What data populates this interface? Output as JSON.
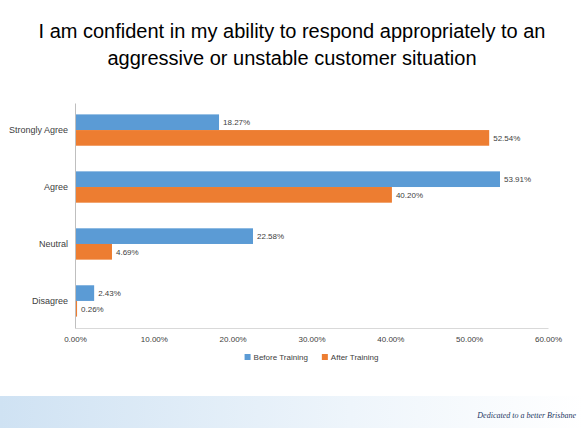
{
  "chart_data": {
    "type": "bar",
    "orientation": "horizontal",
    "title": "I am confident in my ability to respond appropriately to an aggressive or unstable customer situation",
    "categories": [
      "Strongly Agree",
      "Agree",
      "Neutral",
      "Disagree"
    ],
    "series": [
      {
        "name": "Before Training",
        "color": "#5b9bd5",
        "values": [
          18.27,
          53.91,
          22.58,
          2.43
        ],
        "value_labels": [
          "18.27%",
          "53.91%",
          "22.58%",
          "2.43%"
        ]
      },
      {
        "name": "After Training",
        "color": "#ed7d31",
        "values": [
          52.54,
          40.2,
          4.69,
          0.26
        ],
        "value_labels": [
          "52.54%",
          "40.20%",
          "4.69%",
          "0.26%"
        ]
      }
    ],
    "xlim": [
      0,
      60
    ],
    "xticks": [
      {
        "value": 0,
        "label": "0.00%"
      },
      {
        "value": 10,
        "label": "10.00%"
      },
      {
        "value": 20,
        "label": "20.00%"
      },
      {
        "value": 30,
        "label": "30.00%"
      },
      {
        "value": 40,
        "label": "40.00%"
      },
      {
        "value": 50,
        "label": "50.00%"
      },
      {
        "value": 60,
        "label": "60.00%"
      }
    ],
    "grid": false,
    "data_labels": true,
    "legend": "bottom",
    "annotations": [
      "Dedicated to a better Brisbane"
    ]
  }
}
